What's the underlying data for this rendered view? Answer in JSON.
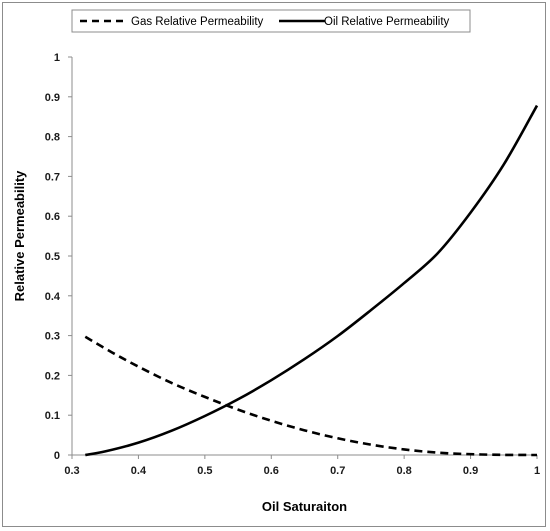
{
  "chart_data": {
    "type": "line",
    "title": "",
    "xlabel": "Oil Saturaiton",
    "ylabel": "Relative Permeability",
    "xlim": [
      0.3,
      1
    ],
    "ylim": [
      0,
      1
    ],
    "xticks": [
      "0.3",
      "0.4",
      "0.5",
      "0.6",
      "0.7",
      "0.8",
      "0.9",
      "1"
    ],
    "yticks": [
      "0",
      "0.1",
      "0.2",
      "0.3",
      "0.4",
      "0.5",
      "0.6",
      "0.7",
      "0.8",
      "0.9",
      "1"
    ],
    "grid": false,
    "legend_position": "top-center",
    "series": [
      {
        "name": "Gas Relative Permeability",
        "style": "dashed",
        "color": "#000000",
        "x": [
          0.32,
          0.36,
          0.4,
          0.45,
          0.5,
          0.55,
          0.6,
          0.65,
          0.7,
          0.75,
          0.8,
          0.85,
          0.9,
          0.95,
          1.0
        ],
        "y": [
          0.297,
          0.258,
          0.222,
          0.181,
          0.146,
          0.114,
          0.086,
          0.062,
          0.042,
          0.026,
          0.014,
          0.006,
          0.002,
          0.0003,
          0
        ]
      },
      {
        "name": "Oil Relative Permeability",
        "style": "solid",
        "color": "#000000",
        "x": [
          0.32,
          0.35,
          0.4,
          0.45,
          0.5,
          0.55,
          0.6,
          0.65,
          0.7,
          0.75,
          0.8,
          0.85,
          0.9,
          0.95,
          1.0
        ],
        "y": [
          0,
          0.009,
          0.031,
          0.061,
          0.098,
          0.14,
          0.188,
          0.241,
          0.299,
          0.364,
          0.432,
          0.506,
          0.609,
          0.73,
          0.878
        ]
      }
    ]
  }
}
